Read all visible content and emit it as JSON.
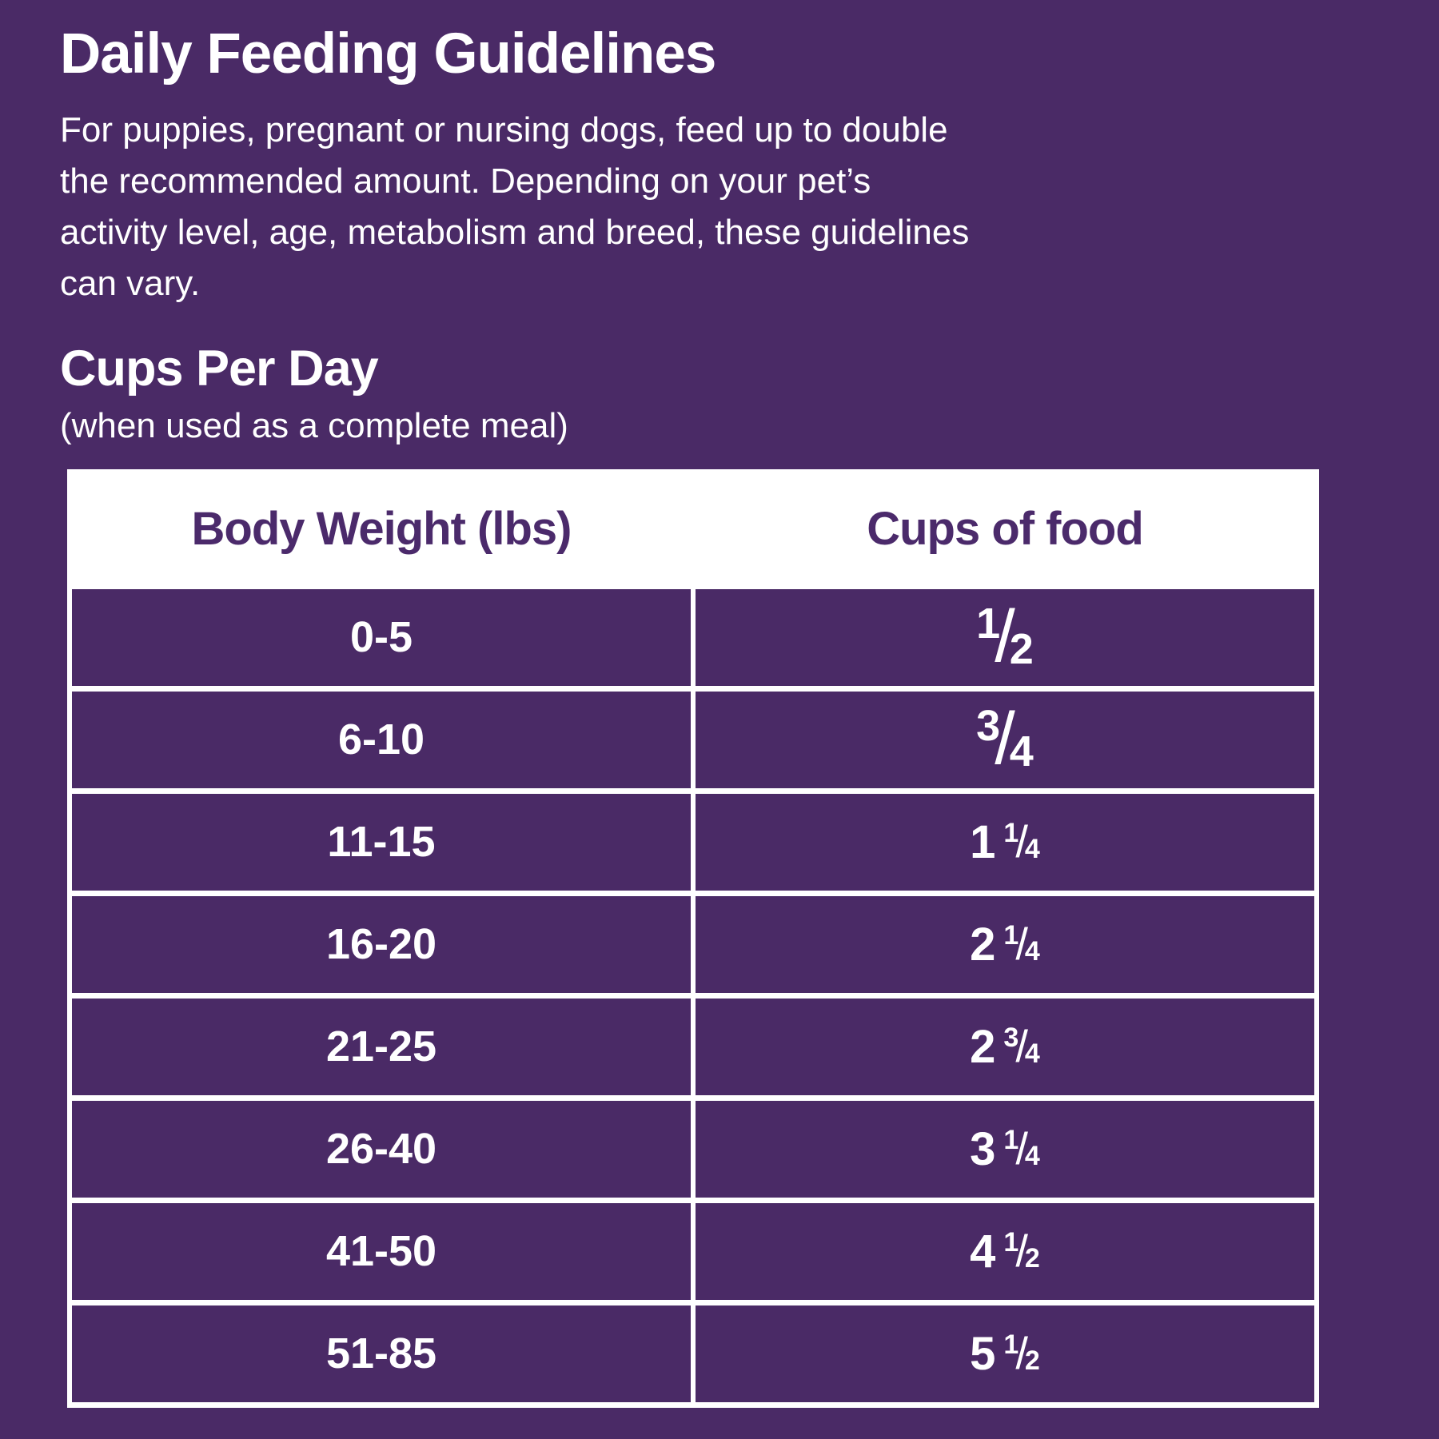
{
  "header": {
    "title": "Daily Feeding Guidelines",
    "intro_lines": [
      "For puppies, pregnant or nursing dogs, feed up to double",
      "the recommended amount. Depending on your pet’s",
      "activity level, age, metabolism and breed, these guidelines",
      "can vary."
    ]
  },
  "section": {
    "heading": "Cups Per Day",
    "subtitle": "(when used as a complete meal)"
  },
  "table": {
    "columns": [
      "Body Weight (lbs)",
      "Cups of food"
    ],
    "fraction_slash": "/",
    "rows": [
      {
        "weight": "0-5",
        "cups": {
          "whole": "",
          "num": "1",
          "den": "2",
          "size": "large",
          "display": "1/2"
        }
      },
      {
        "weight": "6-10",
        "cups": {
          "whole": "",
          "num": "3",
          "den": "4",
          "size": "large",
          "display": "3/4"
        }
      },
      {
        "weight": "11-15",
        "cups": {
          "whole": "1",
          "num": "1",
          "den": "4",
          "size": "small",
          "display": "1 1/4"
        }
      },
      {
        "weight": "16-20",
        "cups": {
          "whole": "2",
          "num": "1",
          "den": "4",
          "size": "small",
          "display": "2 1/4"
        }
      },
      {
        "weight": "21-25",
        "cups": {
          "whole": "2",
          "num": "3",
          "den": "4",
          "size": "small",
          "display": "2 3/4"
        }
      },
      {
        "weight": "26-40",
        "cups": {
          "whole": "3",
          "num": "1",
          "den": "4",
          "size": "small",
          "display": "3 1/4"
        }
      },
      {
        "weight": "41-50",
        "cups": {
          "whole": "4",
          "num": "1",
          "den": "2",
          "size": "small",
          "display": "4 1/2"
        }
      },
      {
        "weight": "51-85",
        "cups": {
          "whole": "5",
          "num": "1",
          "den": "2",
          "size": "small",
          "display": "5 1/2"
        }
      }
    ]
  },
  "colors": {
    "background": "#4A2A66",
    "cell_background": "#4A2A66",
    "table_gridlines": "#FFFFFF",
    "header_row_background": "#FFFFFF",
    "header_text": "#4B2A6B",
    "body_text": "#FFFFFF"
  }
}
